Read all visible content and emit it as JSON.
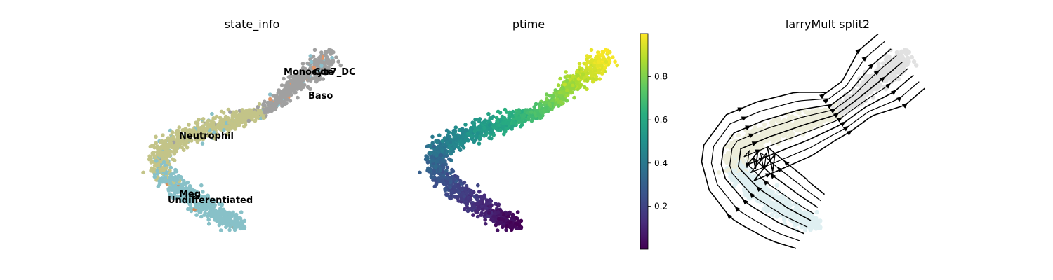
{
  "chart_data": [
    {
      "type": "scatter",
      "title": "state_info",
      "categories": [
        "Monocyte",
        "Ccr7_DC",
        "Baso",
        "Neutrophil",
        "Meg",
        "Undifferentiated"
      ],
      "colors": {
        "Monocyte": "#a0a0a0",
        "Ccr7_DC": "#e0956a",
        "Baso": "#8bbfcb",
        "Neutrophil": "#c3c488",
        "Meg": "#d18b5c",
        "Undifferentiated": "#88c1c8"
      },
      "grid": false,
      "axes_visible": false
    },
    {
      "type": "scatter",
      "title": "ptime",
      "colormap": "viridis",
      "colorbar": {
        "ticks": [
          "0.2",
          "0.4",
          "0.6",
          "0.8"
        ],
        "tick_values": [
          0.2,
          0.4,
          0.6,
          0.8
        ],
        "range": [
          0.0,
          1.0
        ]
      },
      "grid": false,
      "axes_visible": false
    },
    {
      "type": "scatter",
      "title": "larryMult split2",
      "overlay": "streamlines",
      "streamline_color": "#000000",
      "grid": false,
      "axes_visible": false
    }
  ]
}
